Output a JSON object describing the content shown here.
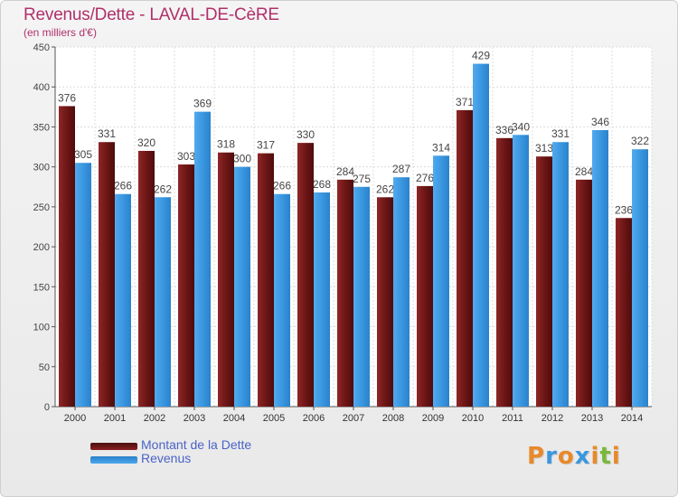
{
  "title": "Revenus/Dette - LAVAL-DE-CèRE",
  "subtitle": "(en milliers d'€)",
  "chart_data": {
    "type": "bar",
    "categories": [
      "2000",
      "2001",
      "2002",
      "2003",
      "2004",
      "2005",
      "2006",
      "2007",
      "2008",
      "2009",
      "2010",
      "2011",
      "2012",
      "2013",
      "2014"
    ],
    "series": [
      {
        "name": "Montant de la Dette",
        "color": "#7a1a1a",
        "values": [
          376,
          331,
          320,
          303,
          318,
          317,
          330,
          284,
          262,
          276,
          371,
          336,
          313,
          284,
          236
        ]
      },
      {
        "name": "Revenus",
        "color": "#3a97e0",
        "values": [
          305,
          266,
          262,
          369,
          300,
          266,
          268,
          275,
          287,
          314,
          429,
          340,
          331,
          346,
          322
        ]
      }
    ],
    "ylim": [
      0,
      450
    ],
    "yticks": [
      0,
      50,
      100,
      150,
      200,
      250,
      300,
      350,
      400,
      450
    ],
    "grid": true,
    "legend_position": "bottom-left"
  },
  "legend": {
    "items": [
      {
        "label": "Montant de la Dette",
        "color": "#7a1a1a"
      },
      {
        "label": "Revenus",
        "color": "#3a97e0"
      }
    ]
  },
  "logo": {
    "letters": [
      "P",
      "r",
      "o",
      "x",
      "i",
      "t",
      "i"
    ],
    "colors": [
      "#e8892a",
      "#3a97e0",
      "#e8892a",
      "#3a97e0",
      "#e8892a",
      "#7ab83a",
      "#e8892a"
    ]
  }
}
